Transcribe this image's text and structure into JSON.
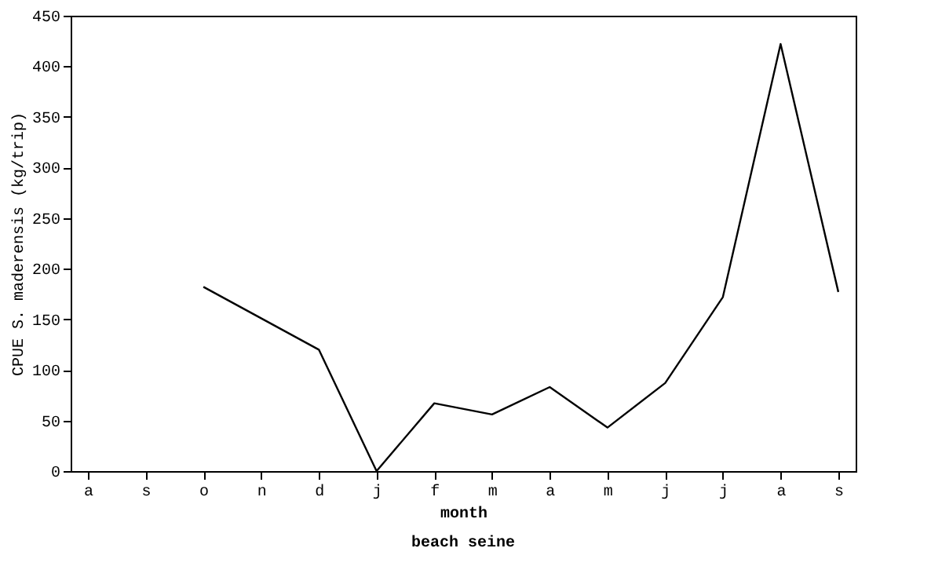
{
  "chart_data": {
    "type": "line",
    "categories": [
      "a",
      "s",
      "o",
      "n",
      "d",
      "j",
      "f",
      "m",
      "a",
      "m",
      "j",
      "j",
      "a",
      "s"
    ],
    "values": [
      null,
      null,
      182,
      151,
      120,
      0,
      67,
      56,
      83,
      43,
      87,
      172,
      422,
      177
    ],
    "color": "#000000",
    "xlabel": "month",
    "ylabel": "CPUE S. maderensis (kg/trip)",
    "annotations": [
      "beach seine"
    ],
    "ylim": [
      0,
      450
    ],
    "yticks": [
      0,
      50,
      100,
      150,
      200,
      250,
      300,
      350,
      400,
      450
    ],
    "grid": false,
    "marker": "none",
    "line_style": "solid"
  }
}
